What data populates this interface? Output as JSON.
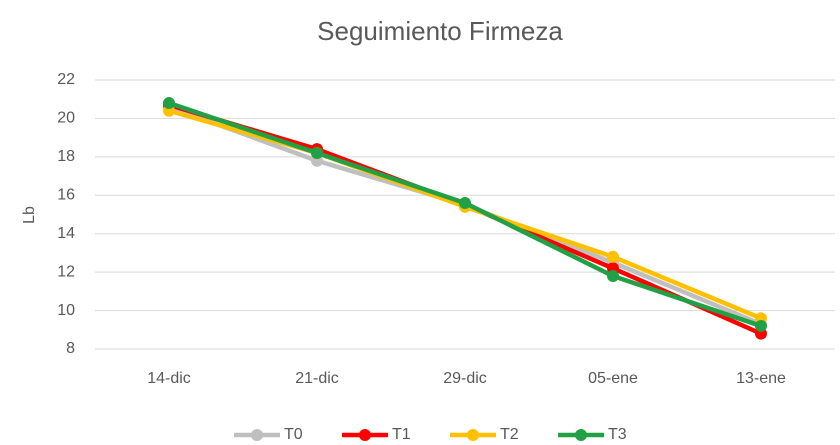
{
  "chart_data": {
    "type": "line",
    "title": "Seguimiento Firmeza",
    "y_label": "Lb",
    "categories": [
      "14-dic",
      "21-dic",
      "29-dic",
      "05-ene",
      "13-ene"
    ],
    "series": [
      {
        "name": "T0",
        "color": "#bfbfbf",
        "values": [
          20.6,
          17.8,
          15.5,
          12.5,
          9.3
        ]
      },
      {
        "name": "T1",
        "color": "#ff0000",
        "values": [
          20.7,
          18.4,
          15.5,
          12.2,
          8.8
        ]
      },
      {
        "name": "T2",
        "color": "#ffc000",
        "values": [
          20.4,
          18.2,
          15.4,
          12.8,
          9.6
        ]
      },
      {
        "name": "T3",
        "color": "#22a045",
        "values": [
          20.8,
          18.2,
          15.6,
          11.8,
          9.2
        ]
      }
    ],
    "ylim": [
      8,
      22
    ],
    "yticks": [
      8,
      10,
      12,
      14,
      16,
      18,
      20,
      22
    ],
    "grid": true,
    "legend": "bottom"
  }
}
